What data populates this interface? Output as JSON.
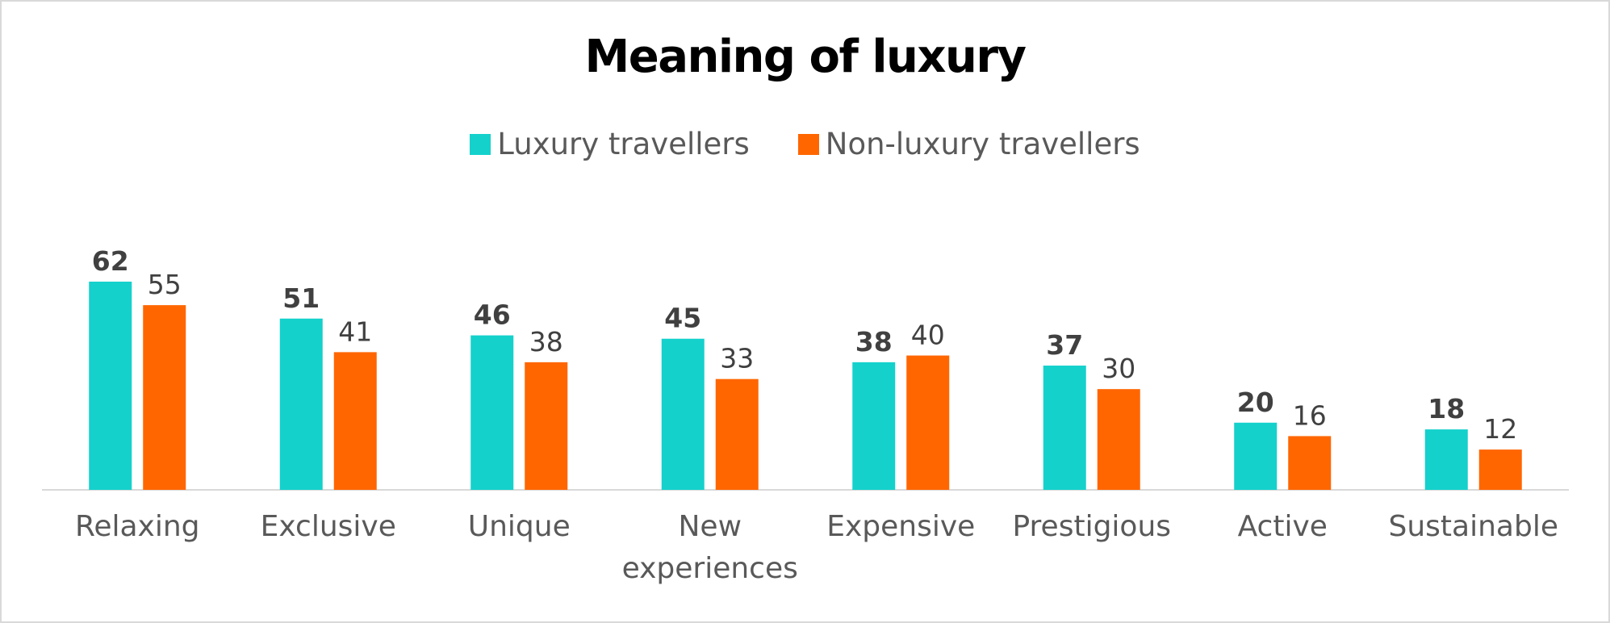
{
  "chart_data": {
    "type": "bar",
    "title": "Meaning of luxury",
    "categories": [
      "Relaxing",
      "Exclusive",
      "Unique",
      "New experiences",
      "Expensive",
      "Prestigious",
      "Active",
      "Sustainable"
    ],
    "category_lines": [
      [
        "Relaxing"
      ],
      [
        "Exclusive"
      ],
      [
        "Unique"
      ],
      [
        "New",
        "experiences"
      ],
      [
        "Expensive"
      ],
      [
        "Prestigious"
      ],
      [
        "Active"
      ],
      [
        "Sustainable"
      ]
    ],
    "series": [
      {
        "name": "Luxury travellers",
        "values": [
          62,
          51,
          46,
          45,
          38,
          37,
          20,
          18
        ],
        "color": "#14D1CC",
        "label_weight": "bold"
      },
      {
        "name": "Non-luxury travellers",
        "values": [
          55,
          41,
          38,
          33,
          40,
          30,
          16,
          12
        ],
        "color": "#FF6600",
        "label_weight": "normal"
      }
    ],
    "ylim": [
      0,
      62
    ],
    "grid": false,
    "legend_position": "top-center",
    "xlabel": "",
    "ylabel": ""
  }
}
